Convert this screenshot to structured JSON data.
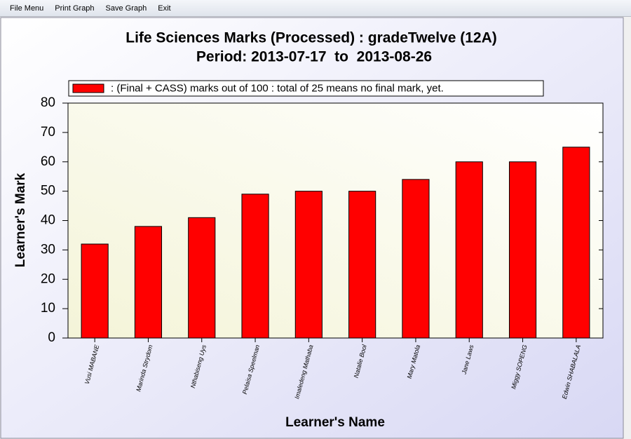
{
  "menu": [
    "File Menu",
    "Print Graph",
    "Save Graph",
    "Exit"
  ],
  "chart_data": {
    "type": "bar",
    "title": "Life Sciences Marks (Processed) : gradeTwelve (12A)",
    "subtitle": "Period: 2013-07-17  to  2013-08-26",
    "x_label": "Learner's Name",
    "y_label": "Learner's Mark",
    "categories": [
      "Vusi MABANE",
      "Marinda Strydom",
      "Nthabiseng Uys",
      "Pelaisa Speelman",
      "Imaledeng Mathaba",
      "Natalie Bool",
      "Mary Matola",
      "Jane Laws",
      "Miggy SOPENG",
      "Edwin SHABALALA"
    ],
    "series": [
      {
        "name": ": (Final + CASS) marks out of 100 : total of 25 means no final mark, yet.",
        "color": "#ff0000",
        "values": [
          32,
          38,
          41,
          49,
          50,
          50,
          54,
          60,
          60,
          65
        ]
      }
    ],
    "ylim": [
      0,
      80
    ],
    "yticks": [
      0,
      10,
      20,
      30,
      40,
      50,
      60,
      70,
      80
    ],
    "legend": "top"
  }
}
